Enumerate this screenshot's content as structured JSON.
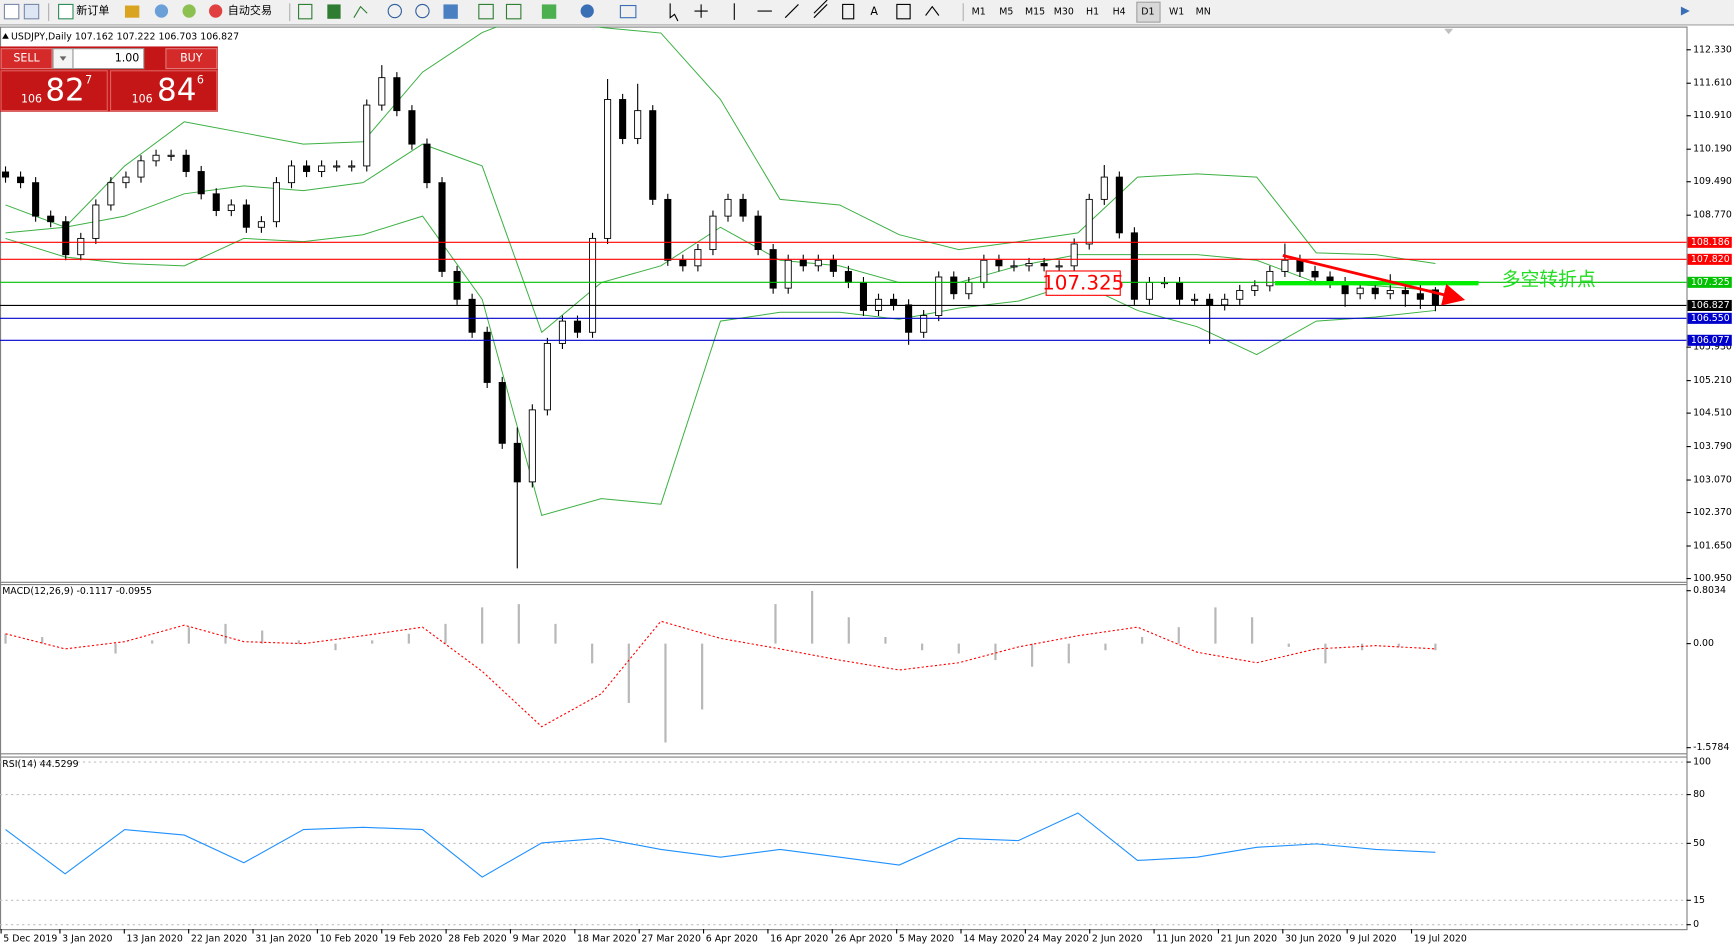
{
  "toolbar": {
    "new_order": "新订单",
    "auto_trading": "自动交易",
    "text_tool": "A",
    "timeframes": [
      "M1",
      "M5",
      "M15",
      "M30",
      "H1",
      "H4",
      "D1",
      "W1",
      "MN"
    ]
  },
  "trade_panel": {
    "sell": "SELL",
    "buy": "BUY",
    "lot": "1.00",
    "sell_price": {
      "big_figure": "106",
      "pips": "82",
      "fraction": "7"
    },
    "buy_price": {
      "big_figure": "106",
      "pips": "84",
      "fraction": "6"
    }
  },
  "annotations": {
    "level_box": "107.325",
    "turning_point": "多空转折点"
  },
  "chart_data": [
    {
      "type": "candlestick",
      "title": "USDJPY,Daily",
      "ohlc_text": "107.162 107.222 106.703 106.827",
      "ylim": [
        100.88,
        112.83
      ],
      "yticks": [
        {
          "value": 112.33,
          "label": "112.330"
        },
        {
          "value": 111.61,
          "label": "111.610"
        },
        {
          "value": 110.91,
          "label": "110.910"
        },
        {
          "value": 110.19,
          "label": "110.190"
        },
        {
          "value": 109.49,
          "label": "109.490"
        },
        {
          "value": 108.77,
          "label": "108.770"
        },
        {
          "value": 105.93,
          "label": "105.930"
        },
        {
          "value": 105.21,
          "label": "105.210"
        },
        {
          "value": 104.51,
          "label": "104.510"
        },
        {
          "value": 103.79,
          "label": "103.790"
        },
        {
          "value": 103.07,
          "label": "103.070"
        },
        {
          "value": 102.37,
          "label": "102.370"
        },
        {
          "value": 101.65,
          "label": "101.650"
        },
        {
          "value": 100.95,
          "label": "100.950"
        }
      ],
      "hlines": [
        {
          "value": 108.186,
          "color": "#ff0000"
        },
        {
          "value": 107.82,
          "label": "107.820",
          "color": "#ff0000"
        },
        {
          "value": 107.325,
          "color": "#00c000"
        },
        {
          "value": 106.827,
          "color": "#000000"
        },
        {
          "value": 106.55,
          "label": "106.550",
          "color": "#0000cc"
        },
        {
          "value": 106.077,
          "color": "#0000cc"
        }
      ],
      "date_labels": [
        "5 Dec 2019",
        "3 Jan 2020",
        "13 Jan 2020",
        "22 Jan 2020",
        "31 Jan 2020",
        "10 Feb 2020",
        "19 Feb 2020",
        "28 Feb 2020",
        "9 Mar 2020",
        "18 Mar 2020",
        "27 Mar 2020",
        "6 Apr 2020",
        "16 Apr 2020",
        "26 Apr 2020",
        "5 May 2020",
        "14 May 2020",
        "24 May 2020",
        "2 Jun 2020",
        "11 Jun 2020",
        "21 Jun 2020",
        "30 Jun 2020",
        "9 Jul 2020",
        "19 Jul 2020"
      ],
      "candles": [
        [
          109.7,
          109.82,
          109.47,
          109.59
        ],
        [
          109.59,
          109.71,
          109.35,
          109.47
        ],
        [
          109.47,
          109.59,
          108.63,
          108.75
        ],
        [
          108.75,
          108.87,
          108.51,
          108.63
        ],
        [
          108.63,
          108.75,
          107.8,
          107.92
        ],
        [
          107.92,
          108.39,
          107.8,
          108.27
        ],
        [
          108.27,
          109.11,
          108.15,
          108.99
        ],
        [
          108.99,
          109.59,
          108.87,
          109.47
        ],
        [
          109.47,
          109.71,
          109.35,
          109.59
        ],
        [
          109.59,
          110.06,
          109.47,
          109.94
        ],
        [
          109.94,
          110.18,
          109.82,
          110.06
        ],
        [
          110.06,
          110.18,
          109.94,
          110.06
        ],
        [
          110.06,
          110.18,
          109.59,
          109.71
        ],
        [
          109.71,
          109.83,
          109.11,
          109.23
        ],
        [
          109.23,
          109.35,
          108.75,
          108.87
        ],
        [
          108.87,
          109.11,
          108.75,
          108.99
        ],
        [
          108.99,
          109.11,
          108.39,
          108.51
        ],
        [
          108.51,
          108.75,
          108.39,
          108.63
        ],
        [
          108.63,
          109.59,
          108.51,
          109.47
        ],
        [
          109.47,
          109.95,
          109.35,
          109.83
        ],
        [
          109.83,
          109.95,
          109.59,
          109.71
        ],
        [
          109.71,
          109.95,
          109.59,
          109.83
        ],
        [
          109.83,
          109.95,
          109.71,
          109.83
        ],
        [
          109.83,
          109.95,
          109.71,
          109.83
        ],
        [
          109.83,
          111.26,
          109.71,
          111.14
        ],
        [
          111.14,
          112.0,
          111.02,
          111.73
        ],
        [
          111.73,
          111.85,
          110.9,
          111.02
        ],
        [
          111.02,
          111.14,
          110.18,
          110.3
        ],
        [
          110.3,
          110.42,
          109.35,
          109.47
        ],
        [
          109.47,
          109.59,
          107.44,
          107.56
        ],
        [
          107.56,
          107.68,
          106.84,
          106.96
        ],
        [
          106.96,
          107.08,
          106.13,
          106.25
        ],
        [
          106.25,
          106.37,
          105.05,
          105.17
        ],
        [
          105.17,
          105.29,
          103.74,
          103.86
        ],
        [
          103.86,
          104.2,
          101.17,
          103.03
        ],
        [
          103.03,
          104.7,
          102.91,
          104.58
        ],
        [
          104.58,
          106.13,
          104.46,
          106.01
        ],
        [
          106.01,
          106.61,
          105.89,
          106.49
        ],
        [
          106.49,
          106.61,
          106.13,
          106.25
        ],
        [
          106.25,
          108.39,
          106.13,
          108.27
        ],
        [
          108.27,
          111.7,
          108.15,
          111.26
        ],
        [
          111.26,
          111.38,
          110.3,
          110.42
        ],
        [
          110.42,
          111.6,
          110.3,
          111.02
        ],
        [
          111.02,
          111.14,
          108.99,
          109.11
        ],
        [
          109.11,
          109.23,
          107.68,
          107.8
        ],
        [
          107.8,
          107.92,
          107.56,
          107.68
        ],
        [
          107.68,
          108.15,
          107.56,
          108.03
        ],
        [
          108.03,
          108.87,
          107.91,
          108.75
        ],
        [
          108.75,
          109.23,
          108.63,
          109.11
        ],
        [
          109.11,
          109.23,
          108.63,
          108.75
        ],
        [
          108.75,
          108.87,
          107.91,
          108.03
        ],
        [
          108.03,
          108.15,
          107.08,
          107.2
        ],
        [
          107.2,
          107.92,
          107.08,
          107.8
        ],
        [
          107.8,
          107.92,
          107.56,
          107.68
        ],
        [
          107.68,
          107.92,
          107.56,
          107.8
        ],
        [
          107.8,
          107.92,
          107.44,
          107.56
        ],
        [
          107.56,
          107.68,
          107.2,
          107.32
        ],
        [
          107.32,
          107.44,
          106.6,
          106.72
        ],
        [
          106.72,
          107.08,
          106.6,
          106.96
        ],
        [
          106.96,
          107.08,
          106.72,
          106.84
        ],
        [
          106.84,
          106.96,
          105.98,
          106.25
        ],
        [
          106.25,
          106.73,
          106.13,
          106.61
        ],
        [
          106.61,
          107.56,
          106.49,
          107.44
        ],
        [
          107.44,
          107.56,
          106.96,
          107.08
        ],
        [
          107.08,
          107.44,
          106.96,
          107.32
        ],
        [
          107.32,
          107.92,
          107.2,
          107.8
        ],
        [
          107.8,
          107.92,
          107.56,
          107.68
        ],
        [
          107.68,
          107.8,
          107.56,
          107.68
        ],
        [
          107.68,
          107.85,
          107.56,
          107.73
        ],
        [
          107.73,
          107.85,
          107.56,
          107.68
        ],
        [
          107.68,
          107.8,
          107.56,
          107.68
        ],
        [
          107.68,
          108.27,
          107.56,
          108.15
        ],
        [
          108.15,
          109.23,
          108.03,
          109.11
        ],
        [
          109.11,
          109.85,
          108.99,
          109.59
        ],
        [
          109.59,
          109.71,
          108.27,
          108.39
        ],
        [
          108.39,
          108.51,
          106.84,
          106.96
        ],
        [
          106.96,
          107.44,
          106.84,
          107.32
        ],
        [
          107.32,
          107.44,
          107.2,
          107.32
        ],
        [
          107.32,
          107.44,
          106.84,
          106.96
        ],
        [
          106.96,
          107.08,
          106.84,
          106.96
        ],
        [
          106.96,
          107.08,
          106.0,
          106.84
        ],
        [
          106.84,
          107.08,
          106.72,
          106.96
        ],
        [
          106.96,
          107.27,
          106.84,
          107.15
        ],
        [
          107.15,
          107.37,
          107.03,
          107.25
        ],
        [
          107.25,
          107.68,
          107.13,
          107.56
        ],
        [
          107.56,
          108.16,
          107.44,
          107.8
        ],
        [
          107.8,
          107.92,
          107.44,
          107.56
        ],
        [
          107.56,
          107.68,
          107.32,
          107.44
        ],
        [
          107.44,
          107.56,
          107.2,
          107.32
        ],
        [
          107.32,
          107.44,
          106.8,
          107.08
        ],
        [
          107.08,
          107.32,
          106.96,
          107.2
        ],
        [
          107.2,
          107.32,
          106.96,
          107.08
        ],
        [
          107.08,
          107.5,
          106.96,
          107.15
        ],
        [
          107.15,
          107.27,
          106.8,
          107.08
        ],
        [
          107.08,
          107.3,
          106.75,
          106.96
        ],
        [
          107.162,
          107.222,
          106.703,
          106.827
        ]
      ],
      "bands": {
        "color": "#3cb043",
        "upper": [
          108.39,
          108.51,
          109.83,
          110.78,
          110.54,
          110.3,
          110.35,
          111.85,
          112.7,
          113.2,
          112.81,
          112.69,
          111.26,
          109.11,
          108.99,
          108.35,
          108.03,
          108.2,
          108.39,
          109.59,
          109.66,
          109.59,
          107.96,
          107.92,
          107.73
        ],
        "middle": [
          108.99,
          108.51,
          108.75,
          109.23,
          109.4,
          109.3,
          109.47,
          110.3,
          109.83,
          106.25,
          107.32,
          107.68,
          108.51,
          107.8,
          107.68,
          107.32,
          107.32,
          107.68,
          107.92,
          107.92,
          107.92,
          107.8,
          107.32,
          107.25,
          107.15
        ],
        "lower": [
          108.27,
          107.87,
          107.73,
          107.68,
          108.27,
          108.2,
          108.35,
          108.75,
          106.96,
          102.31,
          102.67,
          102.55,
          106.49,
          106.68,
          106.68,
          106.53,
          106.77,
          106.92,
          107.32,
          106.72,
          106.37,
          105.77,
          106.49,
          106.58,
          106.72
        ]
      }
    },
    {
      "type": "macd",
      "title": "MACD(12,26,9) -0.1117 -0.0955",
      "ylim": [
        -1.663,
        0.905
      ],
      "yticks": [
        0.8034,
        {
          "value": 0,
          "label": "0.00"
        },
        -1.5784
      ],
      "histogram": [
        0.15,
        0.1,
        0.0,
        -0.15,
        0.05,
        0.25,
        0.3,
        0.2,
        0.05,
        -0.1,
        0.05,
        0.15,
        0.3,
        0.55,
        0.6,
        0.3,
        -0.3,
        -0.9,
        -1.5,
        -1.0,
        0.0,
        0.6,
        0.8,
        0.4,
        0.1,
        -0.1,
        -0.15,
        -0.25,
        -0.35,
        -0.3,
        -0.1,
        0.1,
        0.25,
        0.55,
        0.4,
        -0.05,
        -0.3,
        -0.1,
        -0.05,
        -0.1
      ],
      "histogram_color": "#b8b8b8",
      "signal": [
        0.15,
        -0.08,
        0.03,
        0.28,
        0.03,
        0.0,
        0.12,
        0.25,
        -0.42,
        -1.26,
        -0.76,
        0.34,
        0.08,
        -0.08,
        -0.25,
        -0.4,
        -0.29,
        -0.05,
        0.12,
        0.25,
        -0.13,
        -0.29,
        -0.08,
        -0.03,
        -0.08
      ],
      "signal_color": "#ff0000"
    },
    {
      "type": "rsi",
      "title": "RSI(14) 44.5299",
      "ylim": [
        -2.7,
        103.4
      ],
      "yticks": [
        100,
        80,
        50,
        15,
        0
      ],
      "values": [
        58.5,
        31.3,
        58.5,
        55.1,
        38.1,
        58.5,
        59.9,
        58.5,
        29.3,
        50.3,
        53.1,
        46.3,
        41.5,
        46.3,
        41.5,
        36.7,
        53.1,
        51.7,
        68.7,
        39.5,
        41.5,
        47.6,
        49.7,
        46.3,
        44.5
      ],
      "color": "#1e90ff"
    }
  ]
}
